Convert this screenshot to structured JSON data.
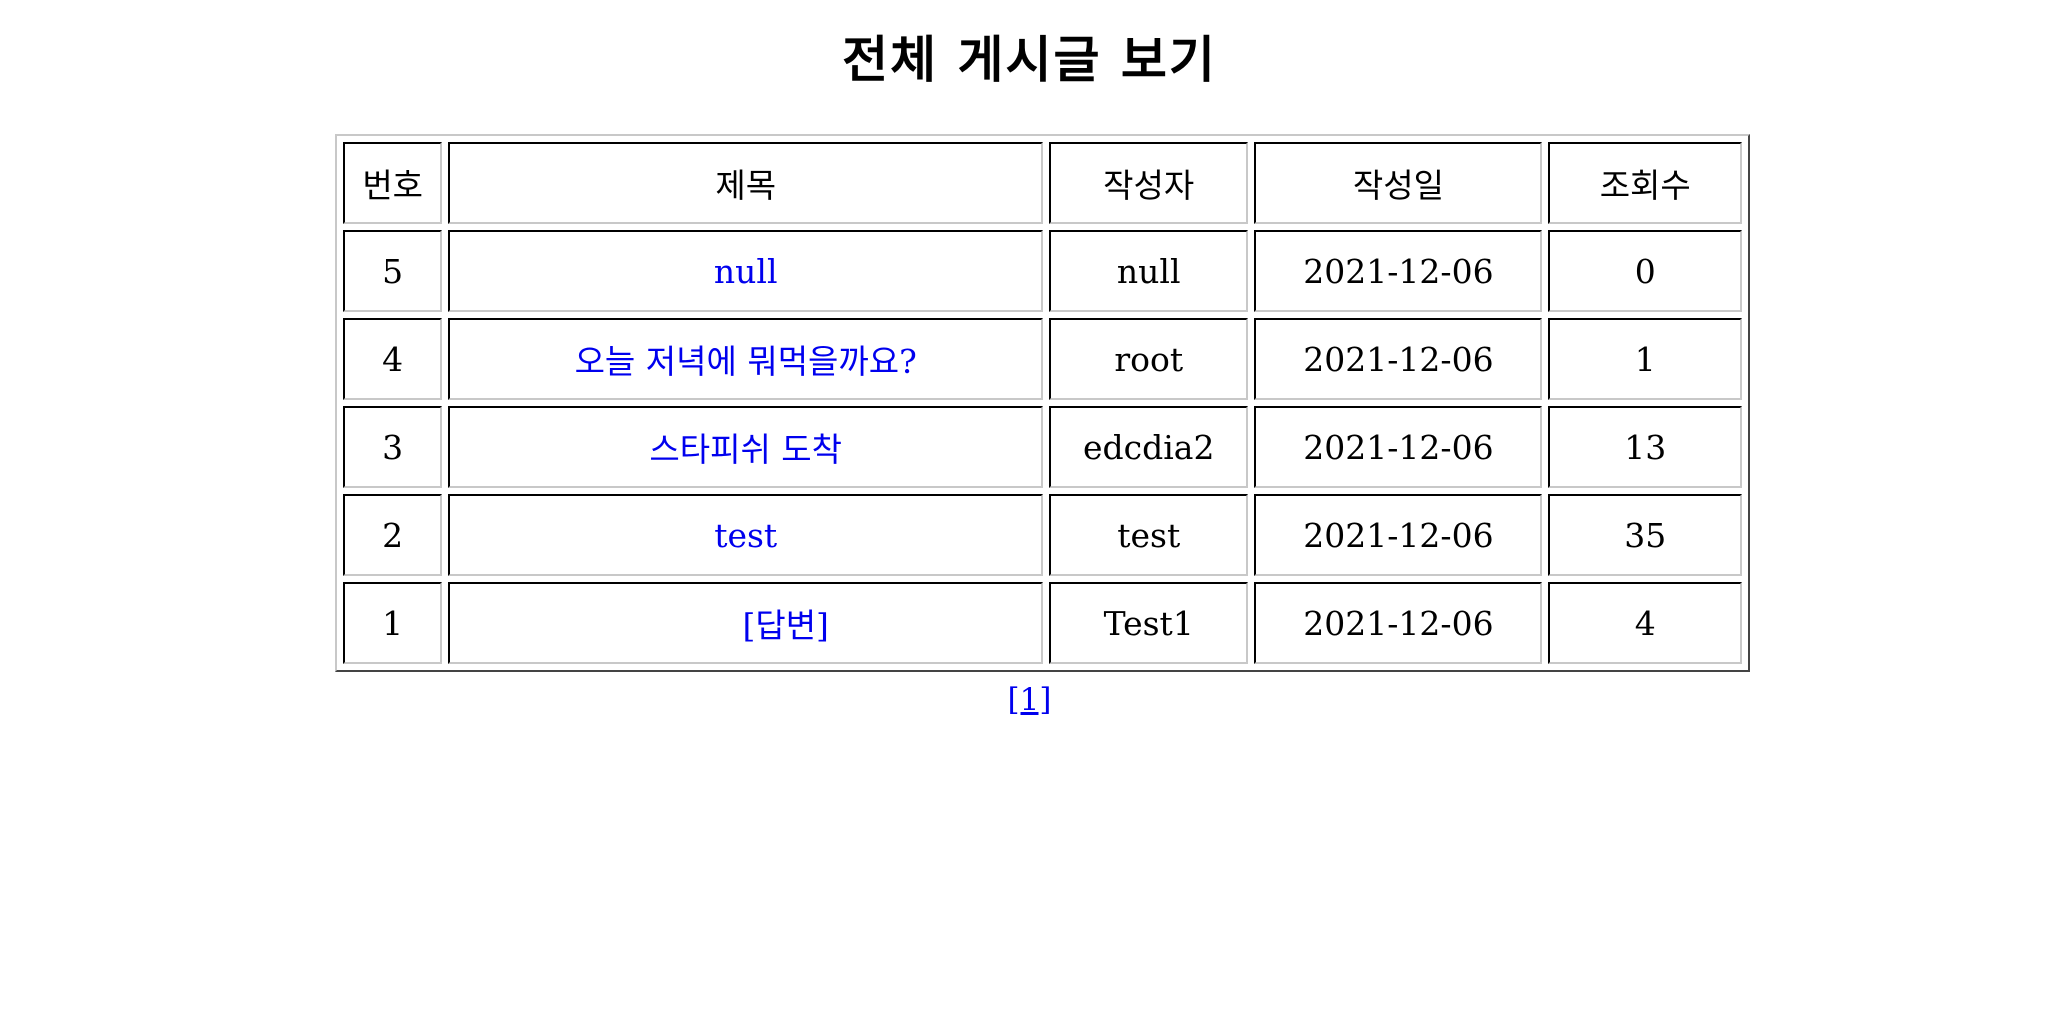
{
  "page_title": "전체 게시글 보기",
  "table": {
    "headers": {
      "number": "번호",
      "title": "제목",
      "writer": "작성자",
      "date": "작성일",
      "views": "조회수"
    },
    "rows": [
      {
        "number": "5",
        "title": "null",
        "writer": "null",
        "date": "2021-12-06",
        "views": "0"
      },
      {
        "number": "4",
        "title": "오늘 저녁에 뭐먹을까요?",
        "writer": "root",
        "date": "2021-12-06",
        "views": "1"
      },
      {
        "number": "3",
        "title": "스타피쉬 도착",
        "writer": "edcdia2",
        "date": "2021-12-06",
        "views": "13"
      },
      {
        "number": "2",
        "title": "test",
        "writer": "test",
        "date": "2021-12-06",
        "views": "35"
      },
      {
        "number": "1",
        "title": "[답변]",
        "writer": "Test1",
        "date": "2021-12-06",
        "views": "4"
      }
    ]
  },
  "pagination": {
    "pages": [
      "[1]"
    ]
  },
  "colors": {
    "link": "#0000ee",
    "text": "#000000",
    "background": "#ffffff"
  }
}
